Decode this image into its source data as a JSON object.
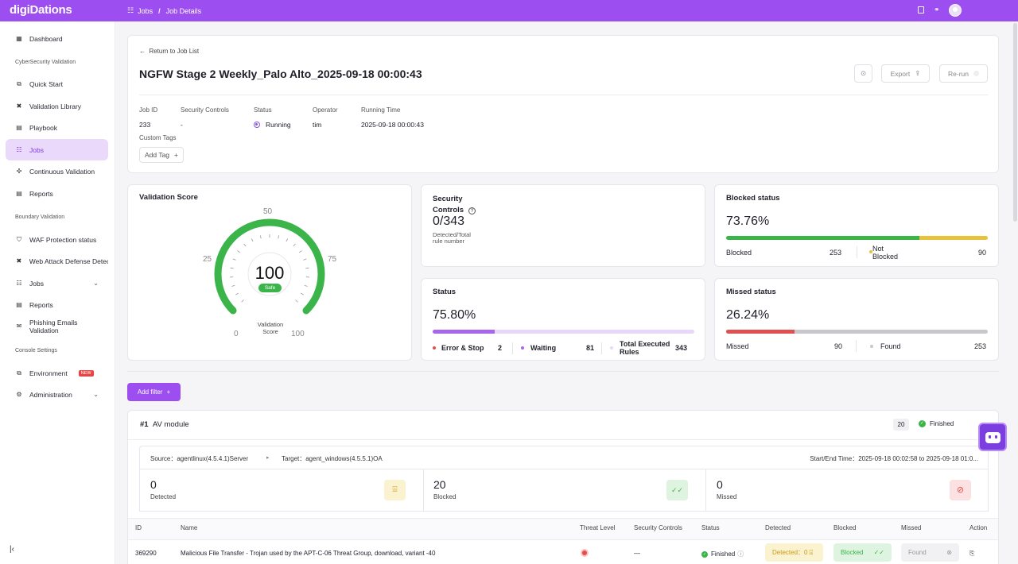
{
  "app": {
    "logo": "digiDations"
  },
  "breadcrumb": {
    "jobs": "Jobs",
    "details": "Job Details"
  },
  "sidebar": {
    "dashboard": "Dashboard",
    "section_cyber": "CyberSecurity Validation",
    "quick_start": "Quick Start",
    "validation_library": "Validation Library",
    "playbook": "Playbook",
    "jobs": "Jobs",
    "continuous_validation": "Continuous Validation",
    "reports": "Reports",
    "section_boundary": "Boundary Validation",
    "waf": "WAF Protection status",
    "web_attack": "Web Attack Defense Detec",
    "jobs2": "Jobs",
    "reports2": "Reports",
    "phishing": "Phishing Emails Validation",
    "section_console": "Console Settings",
    "environment": "Environment",
    "new_badge": "NEW",
    "administration": "Administration"
  },
  "job": {
    "back_link": "Return to Job List",
    "title": "NGFW Stage 2 Weekly_Palo Alto_2025-09-18 00:00:43",
    "export_label": "Export",
    "rerun_label": "Re-run",
    "fields": {
      "job_id_label": "Job ID",
      "job_id": "233",
      "controls_label": "Security Controls",
      "controls": "-",
      "status_label": "Status",
      "status": "Running",
      "operator_label": "Operator",
      "operator": "tim",
      "running_time_label": "Running Time",
      "running_time": "2025-09-18 00:00:43"
    },
    "custom_tags_label": "Custom Tags",
    "add_tag_label": "Add Tag"
  },
  "score": {
    "title": "Validation Score",
    "value": "100",
    "badge": "Safe",
    "caption": "Validation Score",
    "tick_0": "0",
    "tick_25": "25",
    "tick_50": "50",
    "tick_75": "75",
    "tick_100": "100",
    "fill_fraction": 1.0
  },
  "security_controls": {
    "title_a": "Security",
    "title_b": "Controls",
    "value": "0/343",
    "sub_a": "Detected/Total",
    "sub_b": "rule number"
  },
  "blocked_status": {
    "title": "Blocked status",
    "percent": "73.76%",
    "blocked_label": "Blocked",
    "blocked_value": "253",
    "not_blocked_label_a": "Not",
    "not_blocked_label_b": "Blocked",
    "not_blocked_value": "90",
    "fraction": 0.7376
  },
  "status_card": {
    "title": "Status",
    "percent": "75.80%",
    "error_label": "Error & Stop",
    "error_value": "2",
    "waiting_label": "Waiting",
    "waiting_value": "81",
    "executed_label_a": "Total Executed",
    "executed_label_b": "Rules",
    "executed_value": "343",
    "fraction": 0.2362
  },
  "missed_status": {
    "title": "Missed status",
    "percent": "26.24%",
    "missed_label": "Missed",
    "missed_value": "90",
    "found_label": "Found",
    "found_value": "253",
    "fraction": 0.2624
  },
  "filter": {
    "add_filter_label": "Add filter"
  },
  "module": {
    "index": "#1",
    "name": "AV module",
    "count": "20",
    "state": "Finished",
    "source": "Source：agentlinux(4.5.4.1)Server",
    "target": "Target：agent_windows(4.5.5.1)OA",
    "time": "Start/End Time：2025-09-18 00:02:58 to 2025-09-18 01:0...",
    "detected_value": "0",
    "detected_label": "Detected",
    "blocked_value": "20",
    "blocked_label": "Blocked",
    "missed_value": "0",
    "missed_label": "Missed"
  },
  "table": {
    "headers": {
      "id": "ID",
      "name": "Name",
      "threat": "Threat Level",
      "controls": "Security Controls",
      "status": "Status",
      "detected": "Detected",
      "blocked": "Blocked",
      "missed": "Missed",
      "action": "Action"
    },
    "row": {
      "id": "369290",
      "name": "Malicious File Transfer - Trojan used by the APT-C-06 Threat Group, download, variant -40",
      "controls": "—",
      "status": "Finished",
      "detected": "Detected：0",
      "blocked": "Blocked",
      "missed": "Found"
    }
  },
  "colors": {
    "brand": "#9c4ef0",
    "green": "#3bb54a",
    "yellow": "#e8c23a",
    "red": "#e05050",
    "purple": "#a866ec"
  }
}
